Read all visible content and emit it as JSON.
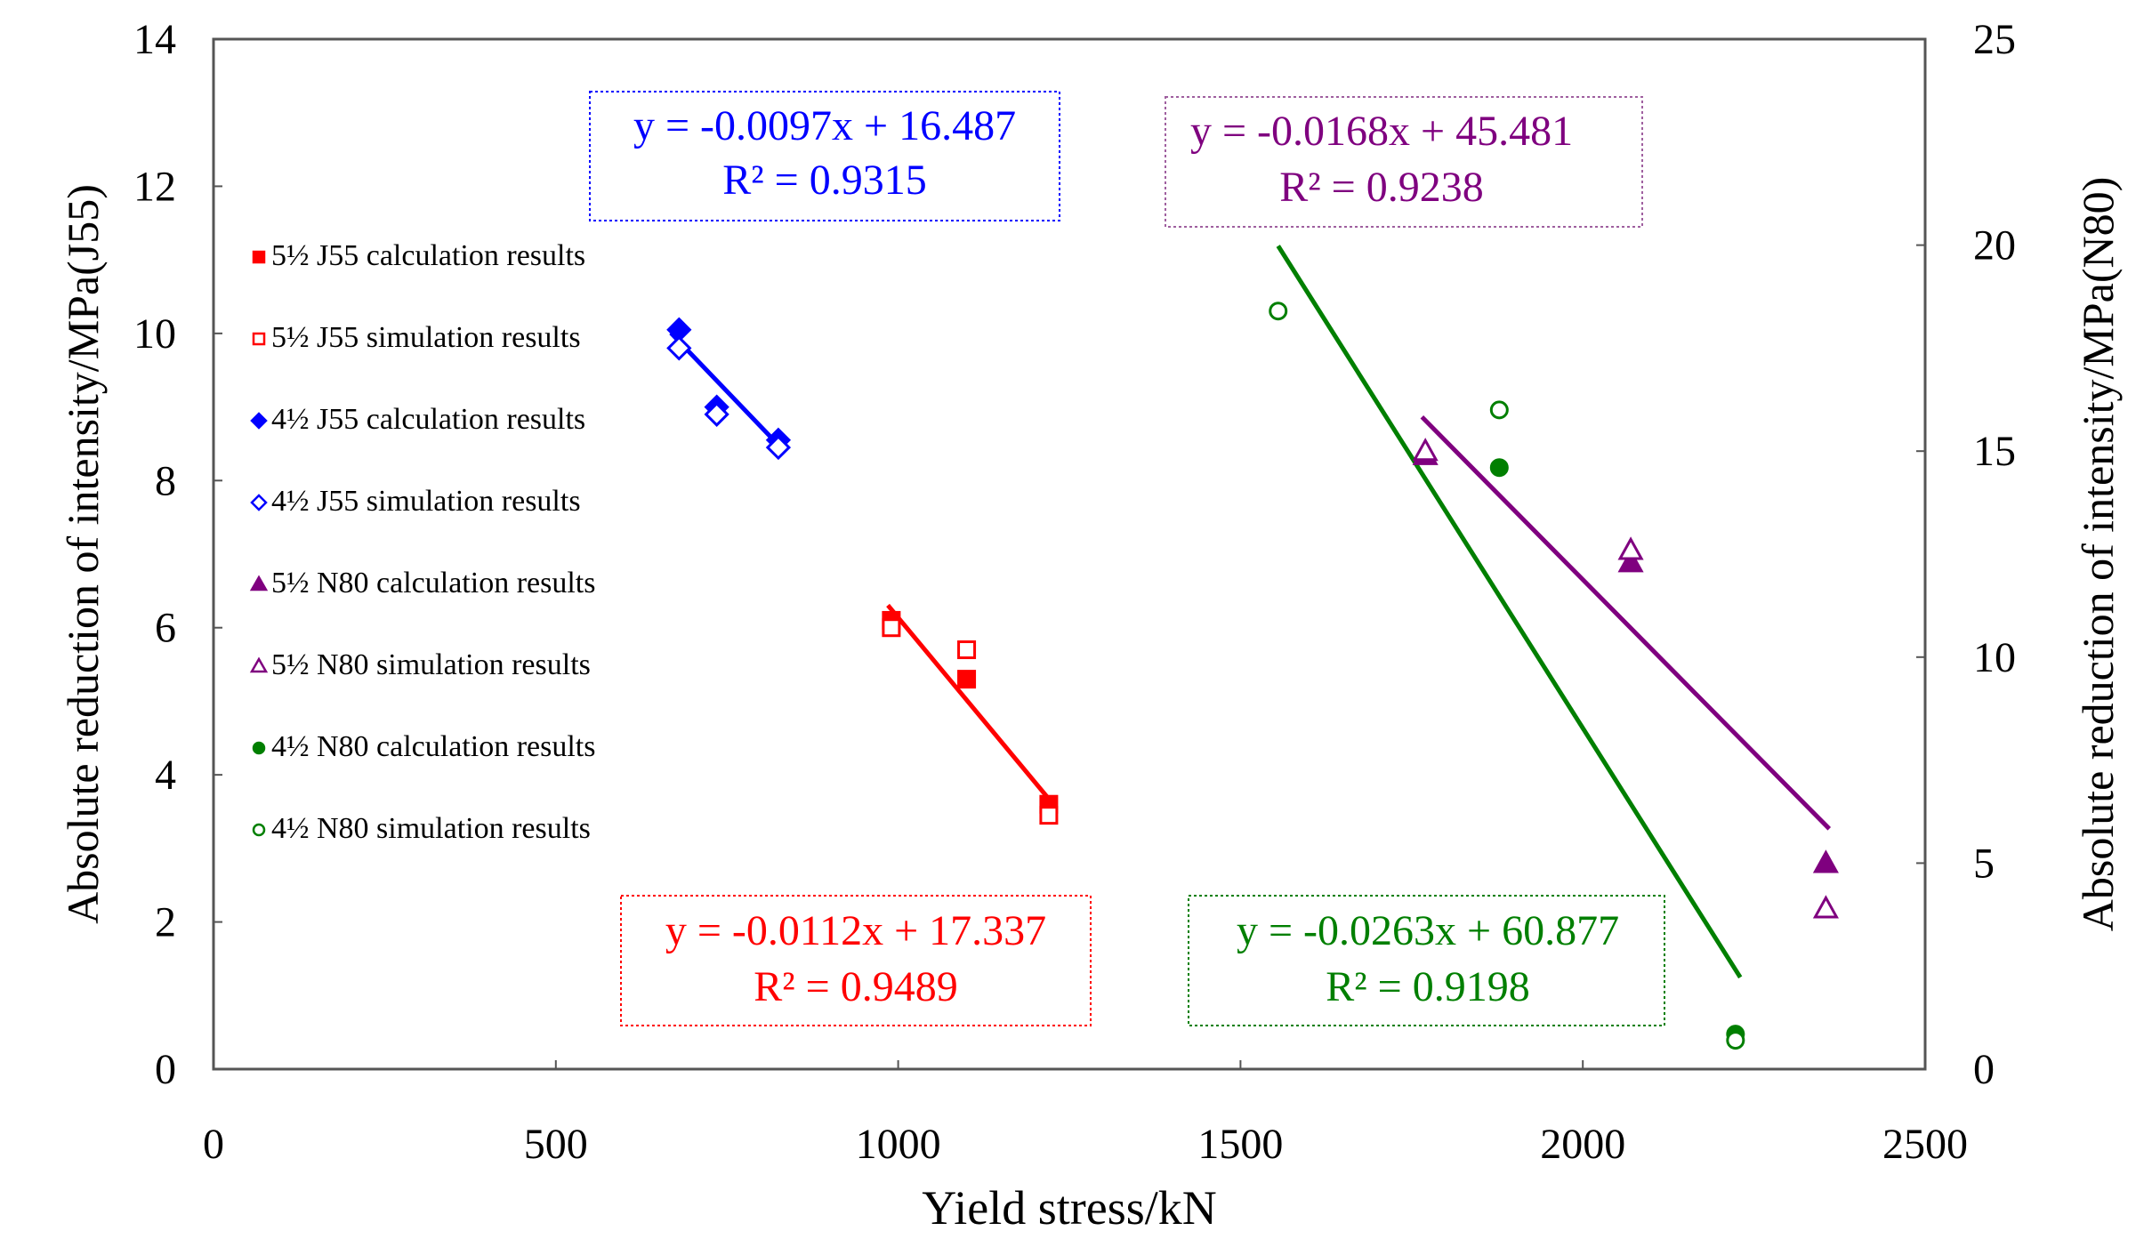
{
  "chart_data": {
    "type": "scatter",
    "xlabel": "Yield stress/kN",
    "ylabel_left": "Absolute reduction of intensity/MPa(J55)",
    "ylabel_right": "Absolute reduction of intensity/MPa(N80)",
    "xlim": [
      0,
      2500
    ],
    "ylim_left": [
      0,
      14
    ],
    "ylim_right": [
      0,
      25
    ],
    "x_ticks": [
      0,
      500,
      1000,
      1500,
      2000,
      2500
    ],
    "y_left_ticks": [
      0,
      2,
      4,
      6,
      8,
      10,
      12,
      14
    ],
    "y_right_ticks": [
      0,
      5,
      10,
      15,
      20,
      25
    ],
    "grid": false,
    "legend_position": "left",
    "series": [
      {
        "name": "5½ J55 calculation results",
        "axis": "left",
        "color": "#ff0000",
        "marker": "square-filled",
        "points": [
          [
            990,
            6.1
          ],
          [
            1100,
            5.3
          ],
          [
            1220,
            3.6
          ]
        ]
      },
      {
        "name": "5½ J55 simulation results",
        "axis": "left",
        "color": "#ff0000",
        "marker": "square-open",
        "points": [
          [
            990,
            6.0
          ],
          [
            1100,
            5.7
          ],
          [
            1220,
            3.45
          ]
        ]
      },
      {
        "name": "4½ J55 calculation results",
        "axis": "left",
        "color": "#0000ff",
        "marker": "diamond-filled",
        "points": [
          [
            680,
            10.05
          ],
          [
            735,
            9.0
          ],
          [
            825,
            8.55
          ]
        ]
      },
      {
        "name": "4½ J55 simulation results",
        "axis": "left",
        "color": "#0000ff",
        "marker": "diamond-open",
        "points": [
          [
            680,
            9.8
          ],
          [
            735,
            8.9
          ],
          [
            825,
            8.45
          ]
        ]
      },
      {
        "name": "5½ N80 calculation results",
        "axis": "right",
        "color": "#7f007f",
        "marker": "triangle-filled",
        "points": [
          [
            1770,
            14.9
          ],
          [
            2070,
            12.3
          ],
          [
            2355,
            5.0
          ]
        ]
      },
      {
        "name": "5½ N80 simulation results",
        "axis": "right",
        "color": "#7f007f",
        "marker": "triangle-open",
        "points": [
          [
            1770,
            15.0
          ],
          [
            2070,
            12.6
          ],
          [
            2355,
            3.9
          ]
        ]
      },
      {
        "name": "4½ N80 calculation results",
        "axis": "right",
        "color": "#007f00",
        "marker": "circle-filled",
        "points": [
          [
            1878,
            14.6
          ],
          [
            2223,
            0.85
          ]
        ]
      },
      {
        "name": "4½ N80 simulation results",
        "axis": "right",
        "color": "#007f00",
        "marker": "circle-open",
        "points": [
          [
            1555,
            18.4
          ],
          [
            1878,
            16.0
          ],
          [
            2223,
            0.7
          ]
        ]
      }
    ],
    "trendlines": [
      {
        "axis": "left",
        "color": "#0000ff",
        "slope": -0.0097,
        "intercept": 16.487,
        "x_range": [
          668,
          830
        ],
        "equation": "y = -0.0097x + 16.487",
        "r2": "R² = 0.9315",
        "box_border": "#0000ff"
      },
      {
        "axis": "left",
        "color": "#ff0000",
        "slope": -0.0112,
        "intercept": 17.337,
        "x_range": [
          985,
          1225
        ],
        "equation": "y = -0.0112x + 17.337",
        "r2": "R² = 0.9489",
        "box_border": "#ff0000"
      },
      {
        "axis": "right",
        "color": "#7f007f",
        "slope": -0.0168,
        "intercept": 45.481,
        "x_range": [
          1765,
          2360
        ],
        "equation": "y = -0.0168x + 45.481",
        "r2": "R² = 0.9238",
        "box_border": "#9f5f9f"
      },
      {
        "axis": "right",
        "color": "#007f00",
        "slope": -0.0263,
        "intercept": 60.877,
        "x_range": [
          1555,
          2230
        ],
        "equation": "y = -0.0263x + 60.877",
        "r2": "R² = 0.9198",
        "box_border": "#007f00"
      }
    ]
  }
}
